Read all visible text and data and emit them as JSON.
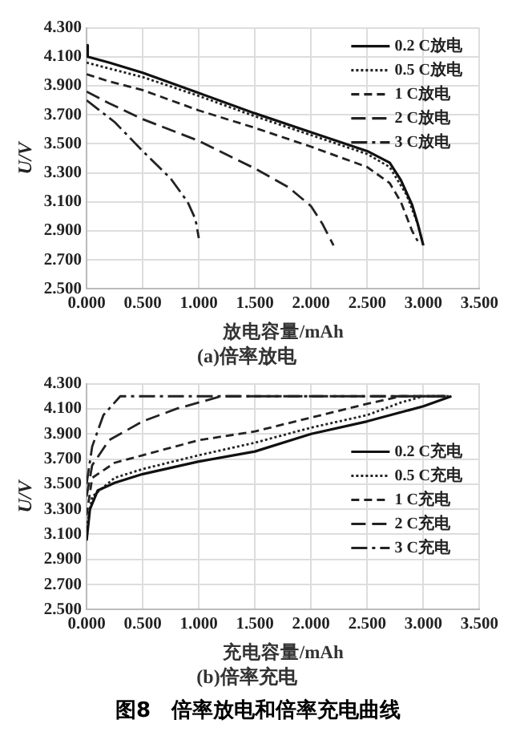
{
  "chart_data": [
    {
      "type": "line",
      "title": "(a)倍率放电",
      "xlabel": "放电容量/mAh",
      "ylabel": "U/V",
      "grid": true,
      "legend": "top right",
      "marker": "none",
      "xlim": [
        0,
        3.5
      ],
      "xticks": [
        {
          "value": 0,
          "label": "0.000"
        },
        {
          "value": 0.5,
          "label": "0.500"
        },
        {
          "value": 1,
          "label": "1.000"
        },
        {
          "value": 1.5,
          "label": "1.500"
        },
        {
          "value": 2,
          "label": "2.000"
        },
        {
          "value": 2.5,
          "label": "2.500"
        },
        {
          "value": 3,
          "label": "3.000"
        },
        {
          "value": 3.5,
          "label": "3.500"
        }
      ],
      "ylim": [
        2.5,
        4.3
      ],
      "yticks": [
        {
          "value": 2.5,
          "label": "2.500"
        },
        {
          "value": 2.7,
          "label": "2.700"
        },
        {
          "value": 2.9,
          "label": "2.900"
        },
        {
          "value": 3.1,
          "label": "3.100"
        },
        {
          "value": 3.3,
          "label": "3.300"
        },
        {
          "value": 3.5,
          "label": "3.500"
        },
        {
          "value": 3.7,
          "label": "3.700"
        },
        {
          "value": 3.9,
          "label": "3.900"
        },
        {
          "value": 4.1,
          "label": "4.100"
        },
        {
          "value": 4.3,
          "label": "4.300"
        }
      ],
      "series": [
        {
          "name": "0.2 C放电",
          "color": "#111111",
          "line_style": "solid",
          "x": [
            0,
            0.01,
            0.2,
            0.5,
            1.0,
            1.5,
            2.0,
            2.5,
            2.7,
            2.8,
            2.9,
            2.95,
            3.0
          ],
          "values": [
            4.18,
            4.1,
            4.06,
            3.99,
            3.85,
            3.71,
            3.58,
            3.45,
            3.37,
            3.25,
            3.08,
            2.95,
            2.8
          ]
        },
        {
          "name": "0.5 C放电",
          "color": "#222222",
          "line_style": "dotted",
          "x": [
            0,
            0.5,
            1.0,
            1.5,
            2.0,
            2.5,
            2.7,
            2.85,
            2.95,
            2.99
          ],
          "values": [
            4.06,
            3.96,
            3.83,
            3.69,
            3.56,
            3.43,
            3.34,
            3.15,
            2.95,
            2.83
          ]
        },
        {
          "name": "1 C放电",
          "color": "#222222",
          "line_style": "dashed",
          "x": [
            0,
            0.2,
            0.5,
            1.0,
            1.5,
            2.0,
            2.5,
            2.7,
            2.8,
            2.9,
            2.95
          ],
          "values": [
            3.98,
            3.93,
            3.87,
            3.73,
            3.61,
            3.48,
            3.34,
            3.23,
            3.1,
            2.9,
            2.83
          ]
        },
        {
          "name": "2 C放电",
          "color": "#222222",
          "line_style": "dashed",
          "x": [
            0,
            0.2,
            0.5,
            1.0,
            1.5,
            1.8,
            2.0,
            2.1,
            2.2
          ],
          "values": [
            3.86,
            3.78,
            3.67,
            3.52,
            3.33,
            3.2,
            3.07,
            2.95,
            2.8
          ]
        },
        {
          "name": "3 C放电",
          "color": "#222222",
          "line_style": "dashed",
          "x": [
            0,
            0.25,
            0.5,
            0.75,
            0.9,
            0.97,
            1.0
          ],
          "values": [
            3.8,
            3.65,
            3.45,
            3.26,
            3.1,
            2.98,
            2.85
          ]
        }
      ]
    },
    {
      "type": "line",
      "title": "(b)倍率充电",
      "xlabel": "充电容量/mAh",
      "ylabel": "U/V",
      "grid": true,
      "legend": "right",
      "marker": "none",
      "annotations": [
        "图8　倍率放电和倍率充电曲线"
      ],
      "xlim": [
        0,
        3.5
      ],
      "xticks": [
        {
          "value": 0,
          "label": "0.000"
        },
        {
          "value": 0.5,
          "label": "0.500"
        },
        {
          "value": 1,
          "label": "1.000"
        },
        {
          "value": 1.5,
          "label": "1.500"
        },
        {
          "value": 2,
          "label": "2.000"
        },
        {
          "value": 2.5,
          "label": "2.500"
        },
        {
          "value": 3,
          "label": "3.000"
        },
        {
          "value": 3.5,
          "label": "3.500"
        }
      ],
      "ylim": [
        2.5,
        4.3
      ],
      "yticks": [
        {
          "value": 2.5,
          "label": "2.500"
        },
        {
          "value": 2.7,
          "label": "2.700"
        },
        {
          "value": 2.9,
          "label": "2.900"
        },
        {
          "value": 3.1,
          "label": "3.100"
        },
        {
          "value": 3.3,
          "label": "3.300"
        },
        {
          "value": 3.5,
          "label": "3.500"
        },
        {
          "value": 3.7,
          "label": "3.700"
        },
        {
          "value": 3.9,
          "label": "3.900"
        },
        {
          "value": 4.1,
          "label": "4.100"
        },
        {
          "value": 4.3,
          "label": "4.300"
        }
      ],
      "series": [
        {
          "name": "0.2 C充电",
          "color": "#111111",
          "line_style": "solid",
          "x": [
            0,
            0.03,
            0.1,
            0.25,
            0.5,
            1.0,
            1.5,
            2.0,
            2.5,
            3.0,
            3.25
          ],
          "values": [
            3.05,
            3.3,
            3.45,
            3.51,
            3.58,
            3.68,
            3.76,
            3.9,
            4.0,
            4.12,
            4.2
          ]
        },
        {
          "name": "0.5 C充电",
          "color": "#222222",
          "line_style": "dotted",
          "x": [
            0,
            0.05,
            0.25,
            0.5,
            1.0,
            1.5,
            2.0,
            2.5,
            2.8,
            3.0,
            3.25
          ],
          "values": [
            3.15,
            3.4,
            3.55,
            3.62,
            3.73,
            3.83,
            3.95,
            4.05,
            4.15,
            4.2,
            4.2
          ]
        },
        {
          "name": "1 C充电",
          "color": "#222222",
          "line_style": "dashed",
          "x": [
            0,
            0.05,
            0.25,
            0.5,
            1.0,
            1.5,
            2.0,
            2.5,
            2.8,
            3.2
          ],
          "values": [
            3.25,
            3.55,
            3.67,
            3.73,
            3.85,
            3.92,
            4.03,
            4.14,
            4.2,
            4.2
          ]
        },
        {
          "name": "2 C充电",
          "color": "#222222",
          "line_style": "dashed",
          "x": [
            0,
            0.05,
            0.2,
            0.5,
            0.8,
            1.2,
            3.2
          ],
          "values": [
            3.4,
            3.65,
            3.85,
            4.0,
            4.1,
            4.2,
            4.2
          ]
        },
        {
          "name": "3 C充电",
          "color": "#222222",
          "line_style": "dashed",
          "x": [
            0,
            0.05,
            0.15,
            0.3,
            3.2
          ],
          "values": [
            3.5,
            3.8,
            4.05,
            4.2,
            4.2
          ]
        }
      ]
    }
  ]
}
